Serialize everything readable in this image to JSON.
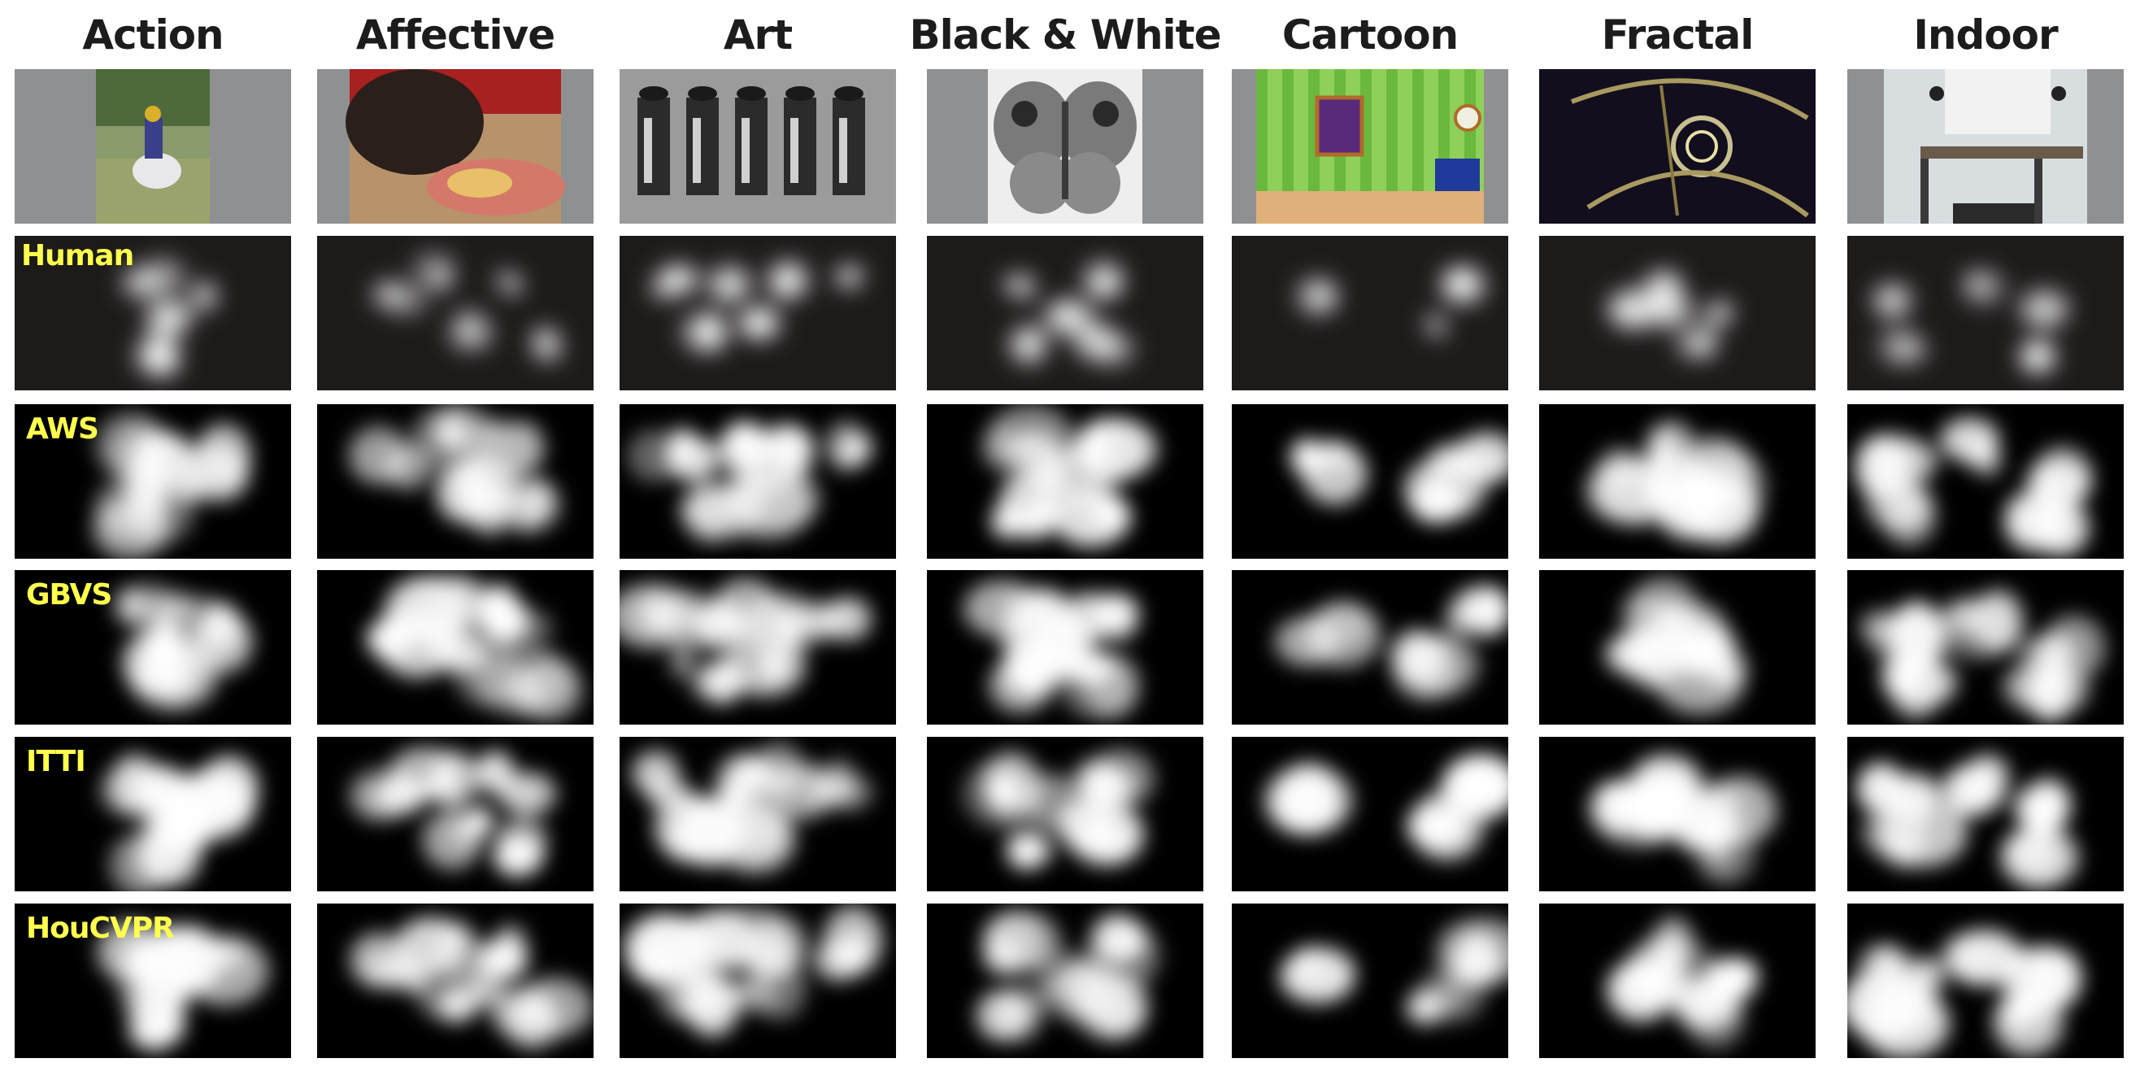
{
  "columns": [
    "Action",
    "Affective",
    "Art",
    "Black & White",
    "Cartoon",
    "Fractal",
    "Indoor"
  ],
  "rows": [
    "Human",
    "AWS",
    "GBVS",
    "ITTI",
    "HouCVPR"
  ],
  "row_kinds": [
    "human",
    "model",
    "model",
    "model",
    "model"
  ],
  "photo_row_kind": "stimulus",
  "colors": {
    "label": "#ffff4d",
    "heading": "#1c1c1c",
    "photo_padding": "#8f9092",
    "human_map_bg": "#1d1a1a",
    "model_map_bg": "#000000"
  }
}
